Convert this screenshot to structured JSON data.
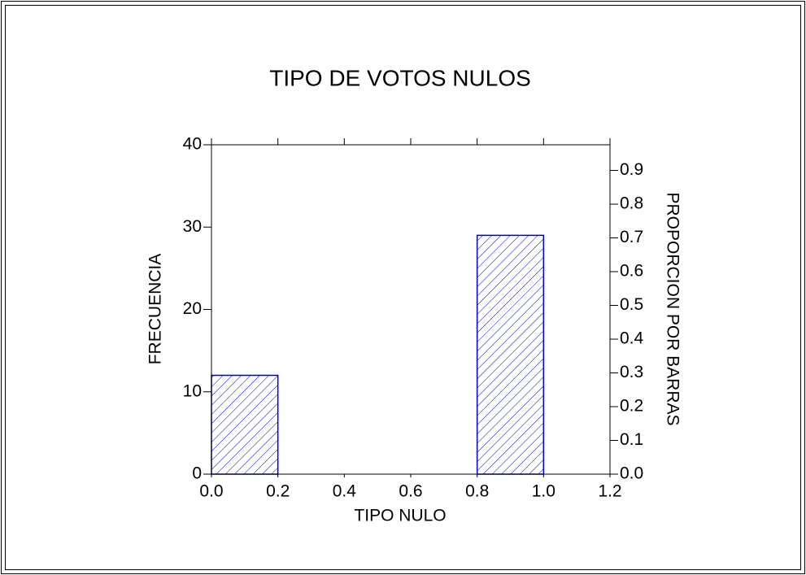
{
  "chart_data": {
    "type": "histogram",
    "title": "TIPO DE VOTOS NULOS",
    "x_label": "TIPO NULO",
    "y_label": "FRECUENCIA",
    "y2_label": "PROPORCION POR BARRAS",
    "bins": [
      0,
      0.2,
      0.4,
      0.6,
      0.8,
      1.0,
      1.2
    ],
    "values": [
      12,
      0,
      0,
      0,
      29,
      0
    ],
    "color": "#0000cc",
    "xlim": [
      0,
      1.2
    ],
    "xticks": [
      {
        "value": 0,
        "label": "0.0"
      },
      0.2,
      0.4,
      0.6,
      0.8,
      {
        "value": 1,
        "label": "1.0"
      },
      1.2
    ],
    "ylim": [
      0,
      40
    ],
    "yticks": [
      0,
      10,
      20,
      30,
      40
    ],
    "y2lim": [
      0,
      0.976
    ],
    "y2ticks": [
      {
        "value": 0,
        "label": "0.0"
      },
      0.1,
      0.2,
      0.3,
      0.4,
      0.5,
      0.6,
      0.7,
      0.8,
      0.9
    ]
  }
}
